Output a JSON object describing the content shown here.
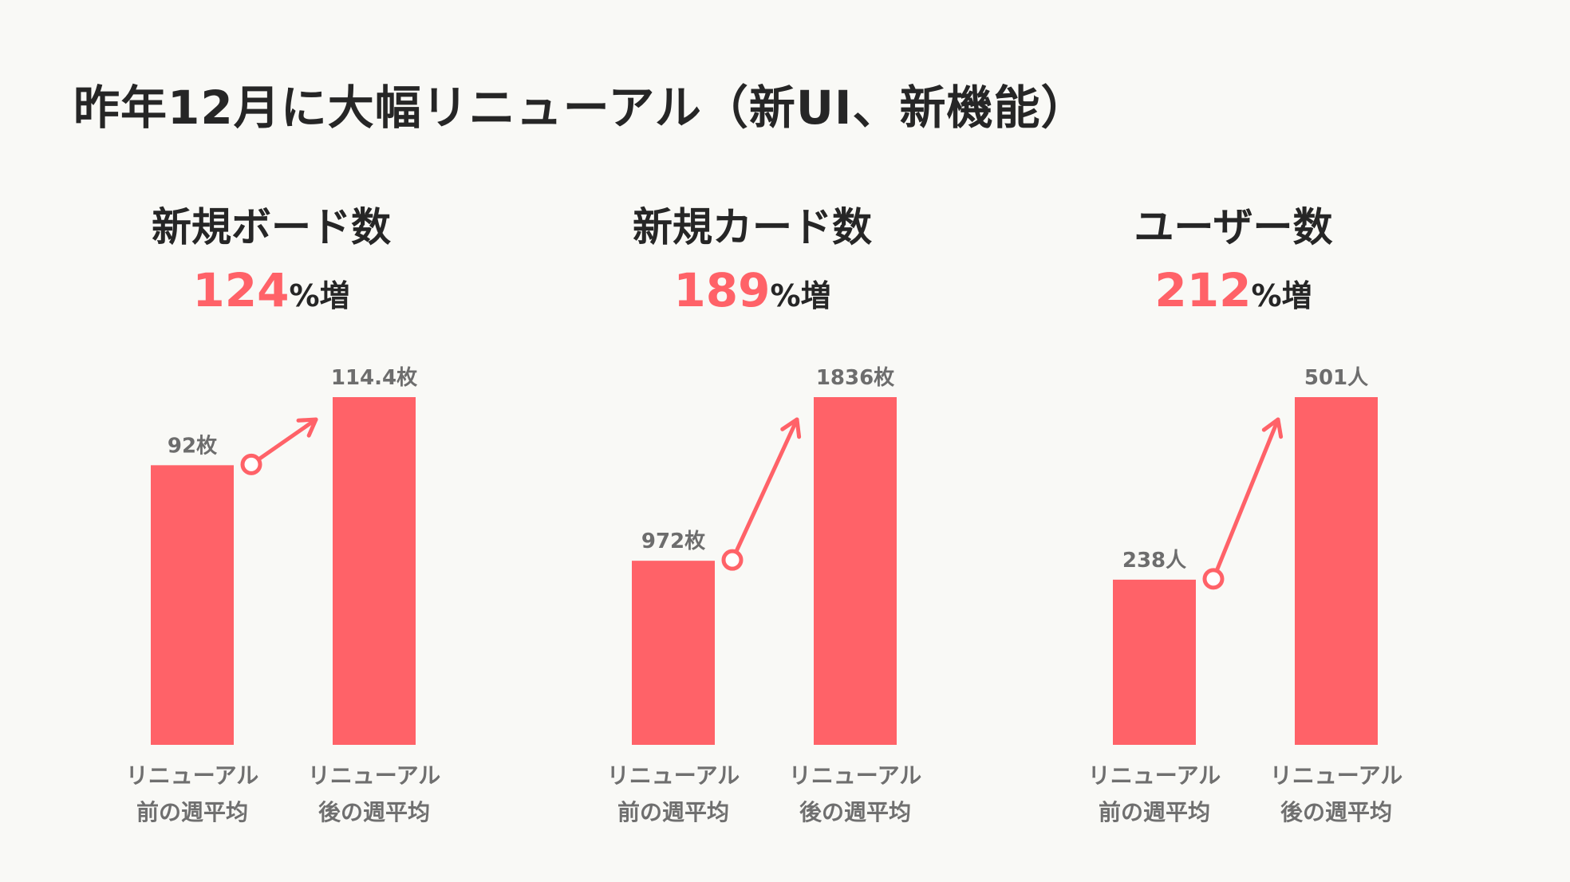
{
  "page": {
    "title": "昨年12月に大幅リニューアル（新UI、新機能）"
  },
  "colors": {
    "accent": "#ff6268",
    "background": "#f9f9f6",
    "text": "#262626",
    "muted": "#6f6f6f"
  },
  "panels": [
    {
      "title": "新規ボード数",
      "increase_value": "124",
      "increase_unit": "%増"
    },
    {
      "title": "新規カード数",
      "increase_value": "189",
      "increase_unit": "%増"
    },
    {
      "title": "ユーザー数",
      "increase_value": "212",
      "increase_unit": "%増"
    }
  ],
  "chart_data": [
    {
      "type": "bar",
      "title": "新規ボード数",
      "annotation": "124%増",
      "categories": [
        [
          "リニューアル",
          "前の週平均"
        ],
        [
          "リニューアル",
          "後の週平均"
        ]
      ],
      "values": [
        92,
        114.4
      ],
      "value_labels": [
        "92枚",
        "114.4枚"
      ],
      "unit": "枚",
      "ylim": [
        0,
        114.4
      ]
    },
    {
      "type": "bar",
      "title": "新規カード数",
      "annotation": "189%増",
      "categories": [
        [
          "リニューアル",
          "前の週平均"
        ],
        [
          "リニューアル",
          "後の週平均"
        ]
      ],
      "values": [
        972,
        1836
      ],
      "value_labels": [
        "972枚",
        "1836枚"
      ],
      "unit": "枚",
      "ylim": [
        0,
        1836
      ]
    },
    {
      "type": "bar",
      "title": "ユーザー数",
      "annotation": "212%増",
      "categories": [
        [
          "リニューアル",
          "前の週平均"
        ],
        [
          "リニューアル",
          "後の週平均"
        ]
      ],
      "values": [
        238,
        501
      ],
      "value_labels": [
        "238人",
        "501人"
      ],
      "unit": "人",
      "ylim": [
        0,
        501
      ]
    }
  ]
}
